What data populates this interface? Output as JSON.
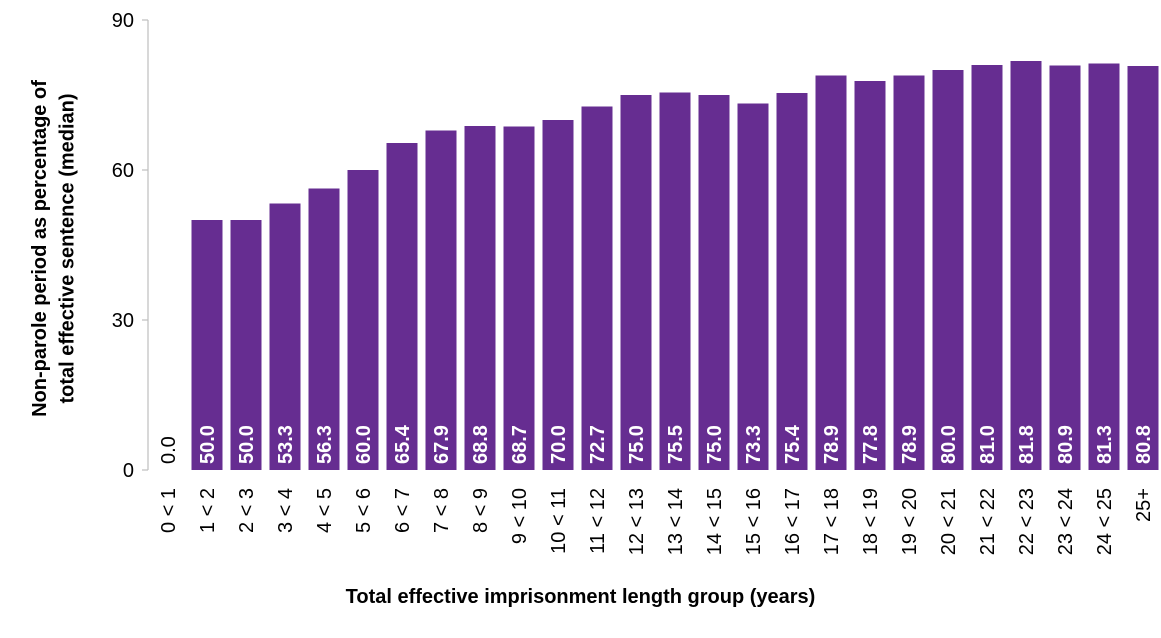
{
  "chart_data": {
    "type": "bar",
    "xlabel": "Total effective imprisonment length group (years)",
    "ylabel": [
      "Non-parole period as percentage of",
      "total effective sentence (median)"
    ],
    "ylim": [
      0,
      90
    ],
    "yticks": [
      0,
      30,
      60,
      90
    ],
    "grid": false,
    "legend": "none",
    "bar_color": "#662d91",
    "label_color_on_bar": "#ffffff",
    "label_color_outside": "#000000",
    "categories": [
      "0 < 1",
      "1 < 2",
      "2 < 3",
      "3 < 4",
      "4 < 5",
      "5 < 6",
      "6 < 7",
      "7 < 8",
      "8 < 9",
      "9 < 10",
      "10 < 11",
      "11 < 12",
      "12 < 13",
      "13 < 14",
      "14 < 15",
      "15 < 16",
      "16 < 17",
      "17 < 18",
      "18 < 19",
      "19 < 20",
      "20 < 21",
      "21 < 22",
      "22 < 23",
      "23 < 24",
      "24 < 25",
      "25+"
    ],
    "values": [
      0.0,
      50.0,
      50.0,
      53.3,
      56.3,
      60.0,
      65.4,
      67.9,
      68.8,
      68.7,
      70.0,
      72.7,
      75.0,
      75.5,
      75.0,
      73.3,
      75.4,
      78.9,
      77.8,
      78.9,
      80.0,
      81.0,
      81.8,
      80.9,
      81.3,
      80.8
    ],
    "value_labels": [
      "0.0",
      "50.0",
      "50.0",
      "53.3",
      "56.3",
      "60.0",
      "65.4",
      "67.9",
      "68.8",
      "68.7",
      "70.0",
      "72.7",
      "75.0",
      "75.5",
      "75.0",
      "73.3",
      "75.4",
      "78.9",
      "77.8",
      "78.9",
      "80.0",
      "81.0",
      "81.8",
      "80.9",
      "81.3",
      "80.8"
    ]
  }
}
